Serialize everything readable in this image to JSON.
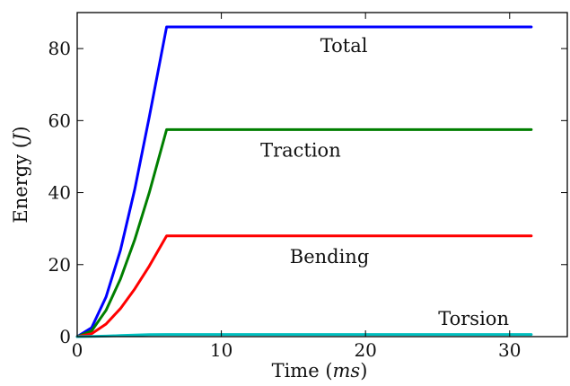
{
  "chart_data": {
    "type": "line",
    "title": "",
    "xlabel": "Time",
    "xunit": "ms",
    "ylabel": "Energy",
    "yunit": "J",
    "xlim": [
      0,
      34
    ],
    "ylim": [
      0,
      90
    ],
    "xticks": [
      0,
      10,
      20,
      30
    ],
    "yticks": [
      0,
      20,
      40,
      60,
      80
    ],
    "grid": false,
    "series": [
      {
        "name": "Total",
        "color": "#0000ff",
        "x": [
          0,
          1,
          2,
          3,
          4,
          5,
          6.2,
          10,
          20,
          31.5
        ],
        "y": [
          0,
          2.5,
          11,
          24,
          41,
          61,
          86,
          86,
          86,
          86
        ]
      },
      {
        "name": "Traction",
        "color": "#007f00",
        "x": [
          0,
          1,
          2,
          3,
          4,
          5,
          6.2,
          10,
          20,
          31.5
        ],
        "y": [
          0,
          1.6,
          7.3,
          16,
          27,
          40,
          57.5,
          57.5,
          57.5,
          57.5
        ]
      },
      {
        "name": "Bending",
        "color": "#ff0000",
        "x": [
          0,
          1,
          2,
          3,
          4,
          5,
          6.2,
          10,
          20,
          31.5
        ],
        "y": [
          0,
          0.8,
          3.5,
          7.8,
          13.3,
          19.6,
          28,
          28,
          28,
          28
        ]
      },
      {
        "name": "Torsion",
        "color": "#00bfbf",
        "x": [
          0,
          1,
          2,
          3,
          4,
          5,
          6.2,
          10,
          20,
          31.5
        ],
        "y": [
          0,
          0.05,
          0.15,
          0.3,
          0.45,
          0.55,
          0.6,
          0.6,
          0.6,
          0.6
        ]
      }
    ],
    "annotations": [
      {
        "text": "Total",
        "x": 18.5,
        "y": 79
      },
      {
        "text": "Traction",
        "x": 15.5,
        "y": 50
      },
      {
        "text": "Bending",
        "x": 17.5,
        "y": 20.5
      },
      {
        "text": "Torsion",
        "x": 27.5,
        "y": 3.2
      }
    ]
  }
}
